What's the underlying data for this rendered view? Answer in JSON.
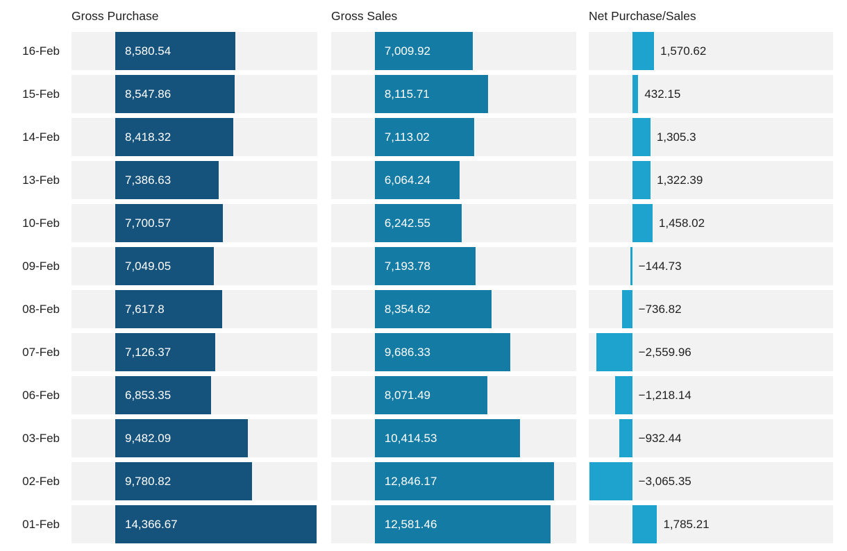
{
  "chart_data": {
    "type": "bar",
    "orientation": "horizontal",
    "title": "",
    "xlabel": "",
    "ylabel": "",
    "grid": false,
    "legend_position": "none",
    "xlim": [
      -3122,
      14421
    ],
    "track_color": "#f2f2f2",
    "text_color": "#212121",
    "inside_label_color": "#ffffff",
    "categories": [
      "16-Feb",
      "15-Feb",
      "14-Feb",
      "13-Feb",
      "10-Feb",
      "09-Feb",
      "08-Feb",
      "07-Feb",
      "06-Feb",
      "03-Feb",
      "02-Feb",
      "01-Feb"
    ],
    "series": [
      {
        "name": "Gross Purchase",
        "color": "#15527c",
        "label_position": "inside",
        "values": [
          8580.54,
          8547.86,
          8418.32,
          7386.63,
          7700.57,
          7049.05,
          7617.8,
          7126.37,
          6853.35,
          9482.09,
          9780.82,
          14366.67
        ],
        "labels": [
          "8,580.54",
          "8,547.86",
          "8,418.32",
          "7,386.63",
          "7,700.57",
          "7,049.05",
          "7,617.8",
          "7,126.37",
          "6,853.35",
          "9,482.09",
          "9,780.82",
          "14,366.67"
        ]
      },
      {
        "name": "Gross Sales",
        "color": "#147ba5",
        "label_position": "inside",
        "values": [
          7009.92,
          8115.71,
          7113.02,
          6064.24,
          6242.55,
          7193.78,
          8354.62,
          9686.33,
          8071.49,
          10414.53,
          12846.17,
          12581.46
        ],
        "labels": [
          "7,009.92",
          "8,115.71",
          "7,113.02",
          "6,064.24",
          "6,242.55",
          "7,193.78",
          "8,354.62",
          "9,686.33",
          "8,071.49",
          "10,414.53",
          "12,846.17",
          "12,581.46"
        ]
      },
      {
        "name": "Net Purchase/Sales",
        "color": "#1ea2ce",
        "label_position": "outside",
        "values": [
          1570.62,
          432.15,
          1305.3,
          1322.39,
          1458.02,
          -144.73,
          -736.82,
          -2559.96,
          -1218.14,
          -932.44,
          -3065.35,
          1785.21
        ],
        "labels": [
          "1,570.62",
          "432.15",
          "1,305.3",
          "1,322.39",
          "1,458.02",
          "−144.73",
          "−736.82",
          "−2,559.96",
          "−1,218.14",
          "−932.44",
          "−3,065.35",
          "1,785.21"
        ]
      }
    ]
  }
}
